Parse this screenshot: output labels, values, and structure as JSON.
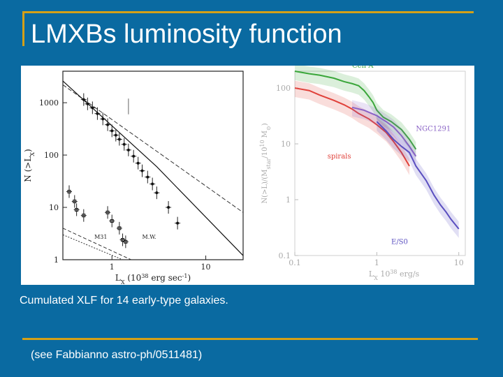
{
  "slide": {
    "title": "LMXBs luminosity function",
    "caption": "Cumulated XLF for 14 early-type galaxies.",
    "footnote": "(see Fabbianno astro-ph/0511481)"
  },
  "colors": {
    "background": "#0a6aa1",
    "accent": "#d4a017",
    "cenA": "#3aa63a",
    "spirals": "#e0413a",
    "ngc": "#8a63c6",
    "es0": "#5a4fc0"
  },
  "chart_data": [
    {
      "type": "scatter",
      "xlabel": "L",
      "xlabel_sub": "X",
      "xlabel_units": "(10",
      "xlabel_exp": "38",
      "xlabel_tail": "erg sec",
      "xlabel_tail_exp": "-1",
      "xlabel_close": ")",
      "ylabel": "N (>L",
      "ylabel_sub": "X",
      "ylabel_close": ")",
      "xscale": "log",
      "yscale": "log",
      "xlim": [
        0.3,
        25
      ],
      "ylim": [
        1,
        4000
      ],
      "x_ticks": [
        {
          "v": 1,
          "label": "1"
        },
        {
          "v": 10,
          "label": "10"
        }
      ],
      "y_ticks": [
        {
          "v": 1,
          "label": "1"
        },
        {
          "v": 10,
          "label": "10"
        },
        {
          "v": 100,
          "label": "100"
        },
        {
          "v": 1000,
          "label": "1000"
        }
      ],
      "annotations": [
        {
          "text": "M31",
          "x": 0.65,
          "y": 2.5
        },
        {
          "text": "M.W.",
          "x": 2.1,
          "y": 2.5
        }
      ],
      "series": [
        {
          "points": [
            [
              0.5,
              1150
            ],
            [
              0.55,
              950
            ],
            [
              0.62,
              800
            ],
            [
              0.7,
              620
            ],
            [
              0.8,
              490
            ],
            [
              0.9,
              380
            ],
            [
              1.0,
              290
            ],
            [
              1.1,
              240
            ],
            [
              1.2,
              200
            ],
            [
              1.35,
              160
            ],
            [
              1.5,
              125
            ],
            [
              1.7,
              95
            ],
            [
              1.9,
              70
            ],
            [
              2.1,
              50
            ],
            [
              2.4,
              38
            ],
            [
              2.7,
              28
            ],
            [
              3.0,
              19
            ],
            [
              4.0,
              10
            ],
            [
              5.0,
              5
            ]
          ]
        },
        {
          "points": [
            [
              0.35,
              20
            ],
            [
              0.4,
              13
            ],
            [
              0.42,
              9
            ],
            [
              0.5,
              7
            ]
          ]
        },
        {
          "points": [
            [
              0.9,
              8
            ],
            [
              1.0,
              5.5
            ],
            [
              1.2,
              4
            ]
          ]
        },
        {
          "points": [
            [
              1.3,
              2.4
            ],
            [
              1.4,
              2.2
            ]
          ]
        }
      ],
      "reference_line": {
        "x": [
          1.5,
          1.5
        ],
        "y": [
          600,
          1200
        ]
      }
    },
    {
      "type": "line",
      "xlabel": "L",
      "xlabel_sub": "X",
      "xlabel_units": "10",
      "xlabel_exp": "38",
      "xlabel_tail": "erg/s",
      "ylabel": "N(>L)/(M",
      "ylabel_sub": "star",
      "ylabel_units": "/10",
      "ylabel_exp": "10",
      "ylabel_tail": "M",
      "ylabel_tail_sub": "⊙",
      "ylabel_close": ")",
      "xscale": "log",
      "yscale": "log",
      "xlim": [
        0.1,
        12
      ],
      "ylim": [
        0.1,
        200
      ],
      "x_ticks": [
        {
          "v": 0.1,
          "label": "0.1"
        },
        {
          "v": 1,
          "label": "1"
        },
        {
          "v": 10,
          "label": "10"
        }
      ],
      "y_ticks": [
        {
          "v": 0.1,
          "label": "0.1"
        },
        {
          "v": 1,
          "label": "1"
        },
        {
          "v": 10,
          "label": "10"
        },
        {
          "v": 100,
          "label": "100"
        }
      ],
      "series": [
        {
          "name": "Cen A",
          "color": "#3aa63a",
          "label_x": 0.5,
          "label_y": 230,
          "x": [
            0.1,
            0.15,
            0.2,
            0.3,
            0.4,
            0.5,
            0.6,
            0.7,
            0.8,
            0.9,
            1.0,
            1.2,
            1.5,
            2.0,
            2.5,
            3.0
          ],
          "y": [
            200,
            180,
            170,
            150,
            130,
            120,
            110,
            90,
            70,
            55,
            40,
            30,
            25,
            18,
            12,
            8
          ]
        },
        {
          "name": "spirals",
          "color": "#e0413a",
          "label_x": 0.25,
          "label_y": 5.5,
          "x": [
            0.1,
            0.15,
            0.2,
            0.3,
            0.4,
            0.5,
            0.6,
            0.8,
            1.0,
            1.3,
            1.6,
            2.0,
            2.5
          ],
          "y": [
            100,
            90,
            75,
            60,
            50,
            42,
            35,
            28,
            22,
            16,
            11,
            7,
            4
          ]
        },
        {
          "name": "NGC1291",
          "color": "#8a63c6",
          "label_x": 3.0,
          "label_y": 17,
          "x": [
            0.5,
            0.7,
            1.0,
            1.3,
            1.6,
            2.0,
            2.5,
            3.0
          ],
          "y": [
            45,
            40,
            32,
            25,
            20,
            14,
            9,
            6
          ]
        },
        {
          "name": "E/S0",
          "color": "#5a4fc0",
          "label_x": 1.5,
          "label_y": 0.16,
          "x": [
            1.0,
            1.3,
            1.6,
            2.0,
            2.5,
            3.0,
            4.0,
            5.0,
            6.0,
            7.0,
            8.0,
            10.0
          ],
          "y": [
            25,
            17,
            12,
            9,
            7,
            4,
            2.2,
            1.2,
            0.8,
            0.6,
            0.45,
            0.3
          ]
        }
      ]
    }
  ]
}
